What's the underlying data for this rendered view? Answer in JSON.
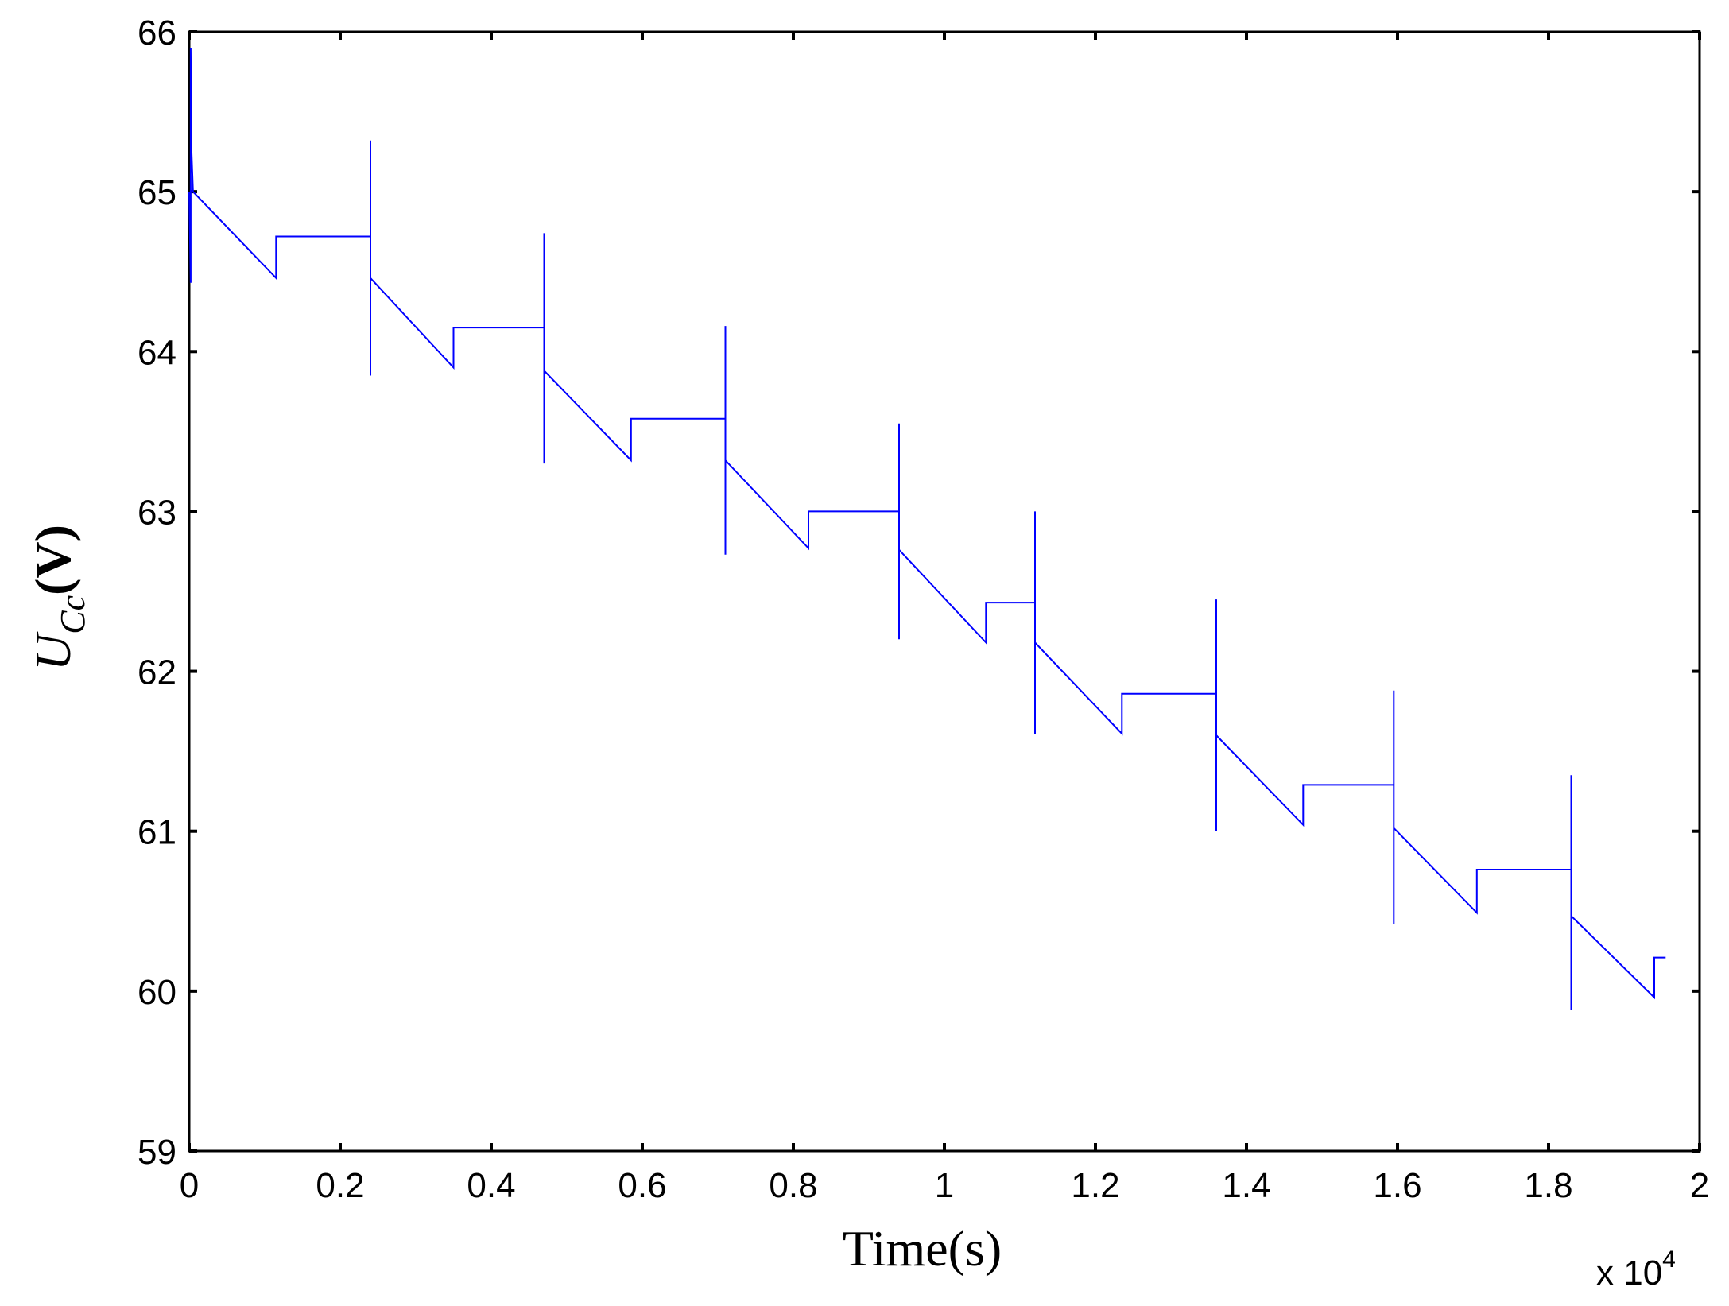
{
  "chart_data": {
    "type": "line",
    "xlabel": "Time(s)",
    "ylabel_main": "U",
    "ylabel_sub": "Cc",
    "ylabel_unit": "(V)",
    "x_multiplier_base": "x 10",
    "x_multiplier_exp": "4",
    "xlim": [
      0,
      2
    ],
    "ylim": [
      59,
      66
    ],
    "xticks": [
      0,
      0.2,
      0.4,
      0.6,
      0.8,
      1,
      1.2,
      1.4,
      1.6,
      1.8,
      2
    ],
    "xtick_labels": [
      "0",
      "0.2",
      "0.4",
      "0.6",
      "0.8",
      "1",
      "1.2",
      "1.4",
      "1.6",
      "1.8",
      "2"
    ],
    "yticks": [
      59,
      60,
      61,
      62,
      63,
      64,
      65,
      66
    ],
    "ytick_labels": [
      "59",
      "60",
      "61",
      "62",
      "63",
      "64",
      "65",
      "66"
    ],
    "grid": false,
    "line_color": "#0000ff",
    "series": [
      {
        "x": [
          0,
          0.002,
          0.002,
          0.003,
          0.003,
          0.005,
          0.005,
          0.115,
          0.115,
          0.24,
          0.24,
          0.24,
          0.24,
          0.35,
          0.35,
          0.47,
          0.47,
          0.47,
          0.47,
          0.585,
          0.585,
          0.71,
          0.71,
          0.71,
          0.71,
          0.82,
          0.82,
          0.94,
          0.94,
          0.94,
          0.94,
          1.055,
          1.055,
          1.12,
          1.12,
          1.12,
          1.12,
          1.235,
          1.235,
          1.36,
          1.36,
          1.36,
          1.36,
          1.475,
          1.475,
          1.595,
          1.595,
          1.595,
          1.595,
          1.705,
          1.705,
          1.83,
          1.83,
          1.83,
          1.83,
          1.94,
          1.94,
          1.955
        ],
        "y": [
          65.0,
          64.43,
          65.9,
          65.27,
          65.27,
          65.0,
          65.0,
          64.46,
          64.72,
          64.72,
          65.32,
          63.85,
          64.46,
          63.9,
          64.15,
          64.15,
          64.74,
          63.3,
          63.88,
          63.32,
          63.58,
          63.58,
          64.16,
          62.73,
          63.32,
          62.77,
          63.0,
          63.0,
          63.55,
          62.2,
          62.76,
          62.18,
          62.43,
          62.43,
          63.0,
          61.61,
          62.18,
          61.61,
          61.86,
          61.86,
          62.45,
          61.0,
          61.6,
          61.04,
          61.29,
          61.29,
          61.88,
          60.42,
          61.02,
          60.49,
          60.76,
          60.76,
          61.35,
          59.88,
          60.47,
          59.96,
          60.21,
          60.21
        ]
      }
    ]
  }
}
